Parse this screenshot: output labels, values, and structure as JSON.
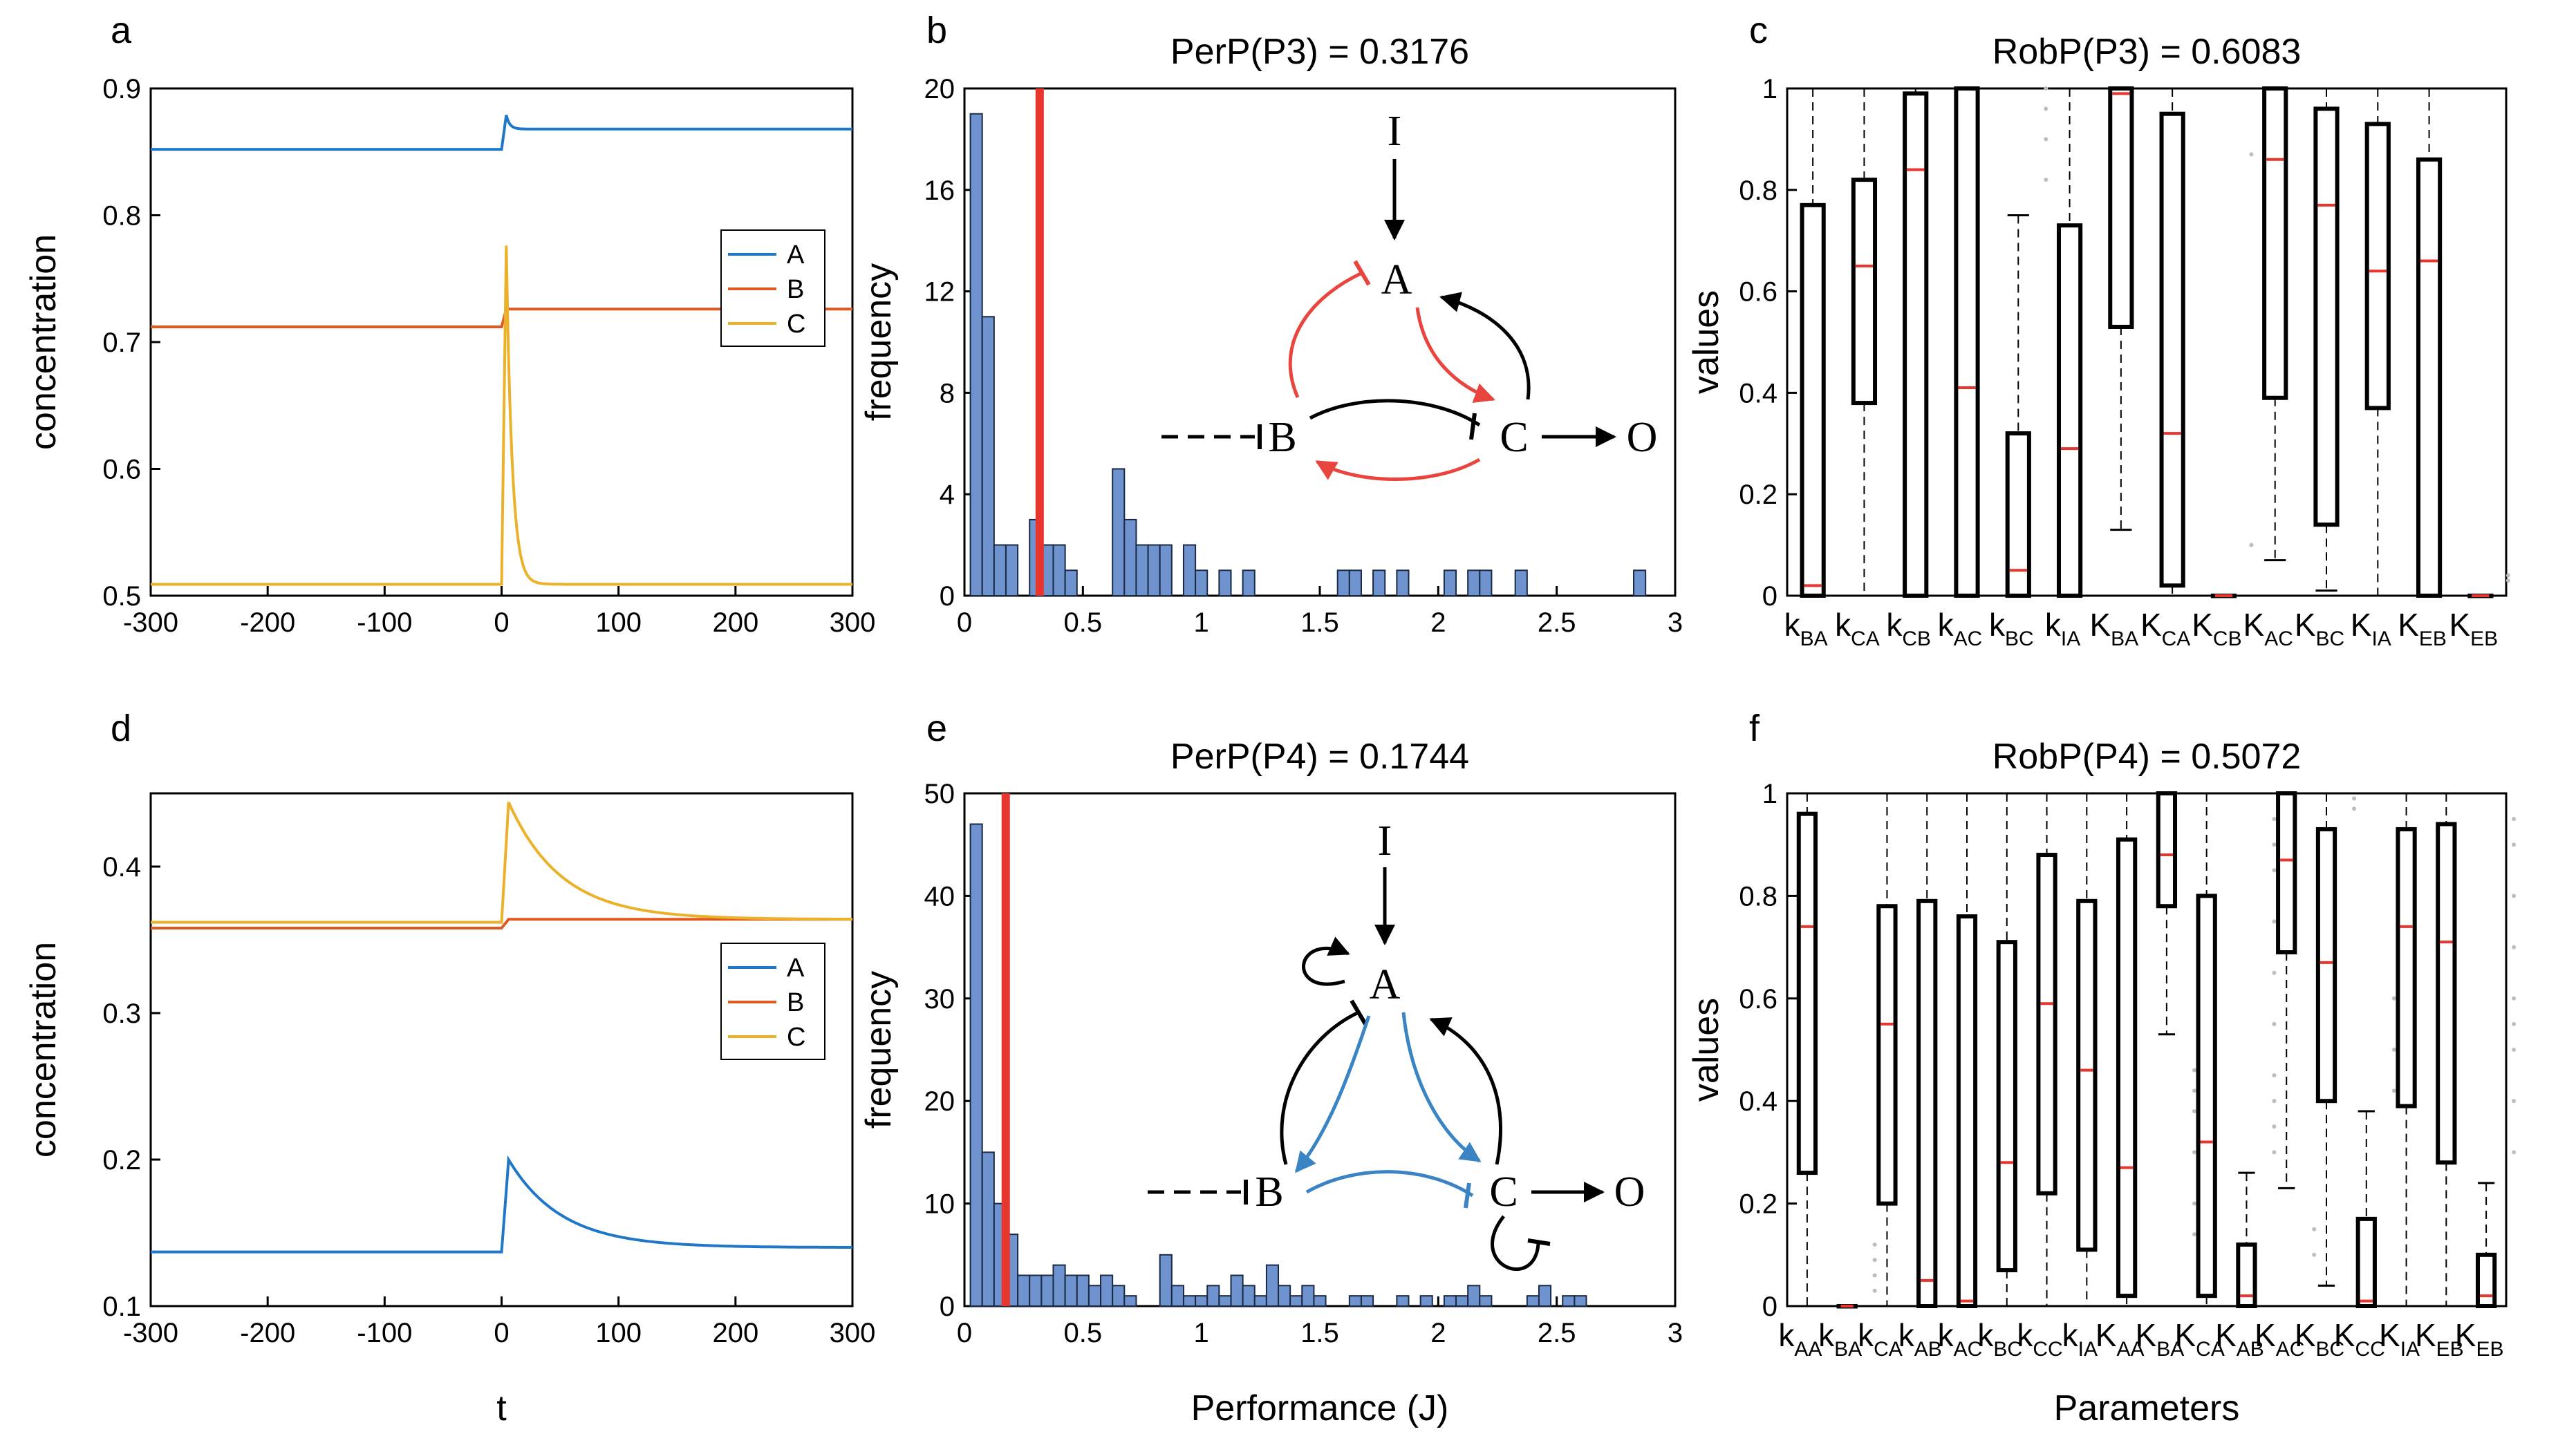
{
  "colors": {
    "A": "#1f77c8",
    "B": "#de5a21",
    "C": "#ecb12a",
    "hist_bar": "#6f93cf",
    "red_line": "#e8352e",
    "inhibit_red": "#e8453e",
    "inhibit_blue": "#3b84c4",
    "median": "#e8352e",
    "outlier": "#bdbdbd"
  },
  "panel_letters": {
    "a": "a",
    "b": "b",
    "c": "c",
    "d": "d",
    "e": "e",
    "f": "f"
  },
  "shared_labels": {
    "concentration": "concentration",
    "frequency": "frequency",
    "values": "values",
    "t": "t",
    "performance": "Performance (J)",
    "parameters": "Parameters"
  },
  "network_labels": {
    "I": "I",
    "A": "A",
    "B": "B",
    "C": "C",
    "O": "O"
  },
  "chart_data": [
    {
      "id": "a",
      "type": "line",
      "xlabel": "",
      "ylabel": "concentration",
      "xlim": [
        -300,
        300
      ],
      "ylim": [
        0.5,
        0.9
      ],
      "xticks": [
        -300,
        -200,
        -100,
        0,
        100,
        200,
        300
      ],
      "yticks": [
        0.5,
        0.6,
        0.7,
        0.8,
        0.9
      ],
      "legend": [
        "A",
        "B",
        "C"
      ],
      "legend_position": "right-middle",
      "series": [
        {
          "name": "A",
          "pre": 0.852,
          "peak": 0.879,
          "post": 0.868,
          "tau": 3
        },
        {
          "name": "B",
          "pre": 0.712,
          "peak": 0.726,
          "post": 0.726,
          "tau": 2
        },
        {
          "name": "C",
          "pre": 0.509,
          "peak": 0.776,
          "post": 0.509,
          "tau": 5
        }
      ]
    },
    {
      "id": "b",
      "type": "bar",
      "title": "PerP(P3) = 0.3176",
      "xlabel": "",
      "ylabel": "frequency",
      "xlim": [
        0,
        3
      ],
      "ylim": [
        0,
        20
      ],
      "xticks": [
        0,
        0.5,
        1,
        1.5,
        2,
        2.5,
        3
      ],
      "yticks": [
        0,
        4,
        8,
        12,
        16,
        20
      ],
      "bin_width": 0.05,
      "bins": [
        [
          0.05,
          19
        ],
        [
          0.1,
          11
        ],
        [
          0.15,
          2
        ],
        [
          0.2,
          2
        ],
        [
          0.3,
          3
        ],
        [
          0.35,
          2
        ],
        [
          0.4,
          2
        ],
        [
          0.45,
          1
        ],
        [
          0.65,
          5
        ],
        [
          0.7,
          3
        ],
        [
          0.75,
          2
        ],
        [
          0.8,
          2
        ],
        [
          0.85,
          2
        ],
        [
          0.95,
          2
        ],
        [
          1.0,
          1
        ],
        [
          1.1,
          1
        ],
        [
          1.2,
          1
        ],
        [
          1.6,
          1
        ],
        [
          1.65,
          1
        ],
        [
          1.75,
          1
        ],
        [
          1.85,
          1
        ],
        [
          2.05,
          1
        ],
        [
          2.15,
          1
        ],
        [
          2.2,
          1
        ],
        [
          2.35,
          1
        ],
        [
          2.85,
          1
        ]
      ],
      "marker": 0.3176
    },
    {
      "id": "c",
      "type": "box",
      "title": "RobP(P3) = 0.6083",
      "ylabel": "values",
      "ylim": [
        0,
        1
      ],
      "yticks": [
        0,
        0.2,
        0.4,
        0.6,
        0.8,
        1
      ],
      "labels": [
        {
          "base": "k",
          "sub": "BA"
        },
        {
          "base": "k",
          "sub": "CA"
        },
        {
          "base": "k",
          "sub": "CB"
        },
        {
          "base": "k",
          "sub": "AC"
        },
        {
          "base": "k",
          "sub": "BC"
        },
        {
          "base": "k",
          "sub": "IA"
        },
        {
          "base": "K",
          "sub": "BA"
        },
        {
          "base": "K",
          "sub": "CA"
        },
        {
          "base": "K",
          "sub": "CB"
        },
        {
          "base": "K",
          "sub": "AC"
        },
        {
          "base": "K",
          "sub": "BC"
        },
        {
          "base": "K",
          "sub": "IA"
        },
        {
          "base": "K",
          "sub": "EB"
        },
        {
          "base": "K",
          "sub": "EB"
        }
      ],
      "boxes": [
        {
          "min": 0,
          "q1": 0,
          "median": 0.02,
          "q3": 0.77,
          "max": 1
        },
        {
          "min": 0,
          "q1": 0.38,
          "median": 0.65,
          "q3": 0.82,
          "max": 1
        },
        {
          "min": 0,
          "q1": 0,
          "median": 0.84,
          "q3": 0.99,
          "max": 1
        },
        {
          "min": 0,
          "q1": 0,
          "median": 0.41,
          "q3": 1,
          "max": 1
        },
        {
          "min": 0,
          "q1": 0,
          "median": 0.05,
          "q3": 0.32,
          "max": 0.75,
          "outliers": [
            0.82,
            0.9,
            0.96,
            1
          ]
        },
        {
          "min": 0,
          "q1": 0,
          "median": 0.29,
          "q3": 0.73,
          "max": 1
        },
        {
          "min": 0.13,
          "q1": 0.53,
          "median": 0.99,
          "q3": 1,
          "max": 1
        },
        {
          "min": 0,
          "q1": 0.02,
          "median": 0.32,
          "q3": 0.95,
          "max": 1
        },
        {
          "min": 0,
          "q1": 0,
          "median": 0,
          "q3": 0,
          "max": 0,
          "outliers": [
            0.1,
            0.87
          ]
        },
        {
          "min": 0.07,
          "q1": 0.39,
          "median": 0.86,
          "q3": 1,
          "max": 1
        },
        {
          "min": 0.01,
          "q1": 0.14,
          "median": 0.77,
          "q3": 0.96,
          "max": 1
        },
        {
          "min": 0,
          "q1": 0.37,
          "median": 0.64,
          "q3": 0.93,
          "max": 1
        },
        {
          "min": 0,
          "q1": 0,
          "median": 0.66,
          "q3": 0.86,
          "max": 1
        },
        {
          "min": 0,
          "q1": 0,
          "median": 0,
          "q3": 0,
          "max": 0,
          "outliers": [
            0.03,
            0.04
          ]
        }
      ]
    },
    {
      "id": "d",
      "type": "line",
      "xlabel": "t",
      "ylabel": "concentration",
      "xlim": [
        -300,
        300
      ],
      "ylim": [
        0.1,
        0.45
      ],
      "xticks": [
        -300,
        -200,
        -100,
        0,
        100,
        200,
        300
      ],
      "yticks": [
        0.1,
        0.2,
        0.3,
        0.4
      ],
      "legend": [
        "A",
        "B",
        "C"
      ],
      "legend_position": "right-middle",
      "series": [
        {
          "name": "A",
          "pre": 0.137,
          "peak": 0.2,
          "post": 0.14,
          "tau": 45
        },
        {
          "name": "B",
          "pre": 0.358,
          "peak": 0.364,
          "post": 0.364,
          "tau": 60
        },
        {
          "name": "C",
          "pre": 0.362,
          "peak": 0.444,
          "post": 0.364,
          "tau": 45
        }
      ]
    },
    {
      "id": "e",
      "type": "bar",
      "title": "PerP(P4) = 0.1744",
      "xlabel": "Performance (J)",
      "ylabel": "frequency",
      "xlim": [
        0,
        3
      ],
      "ylim": [
        0,
        50
      ],
      "xticks": [
        0,
        0.5,
        1,
        1.5,
        2,
        2.5,
        3
      ],
      "yticks": [
        0,
        10,
        20,
        30,
        40,
        50
      ],
      "bin_width": 0.05,
      "bins": [
        [
          0.05,
          47
        ],
        [
          0.1,
          15
        ],
        [
          0.15,
          10
        ],
        [
          0.2,
          7
        ],
        [
          0.25,
          3
        ],
        [
          0.3,
          3
        ],
        [
          0.35,
          3
        ],
        [
          0.4,
          4
        ],
        [
          0.45,
          3
        ],
        [
          0.5,
          3
        ],
        [
          0.55,
          2
        ],
        [
          0.6,
          3
        ],
        [
          0.65,
          2
        ],
        [
          0.7,
          1
        ],
        [
          0.85,
          5
        ],
        [
          0.9,
          2
        ],
        [
          0.95,
          1
        ],
        [
          1.0,
          1
        ],
        [
          1.05,
          2
        ],
        [
          1.1,
          1
        ],
        [
          1.15,
          3
        ],
        [
          1.2,
          2
        ],
        [
          1.25,
          1
        ],
        [
          1.3,
          4
        ],
        [
          1.35,
          2
        ],
        [
          1.4,
          1
        ],
        [
          1.45,
          2
        ],
        [
          1.5,
          1
        ],
        [
          1.65,
          1
        ],
        [
          1.7,
          1
        ],
        [
          1.85,
          1
        ],
        [
          1.95,
          1
        ],
        [
          2.05,
          1
        ],
        [
          2.1,
          1
        ],
        [
          2.15,
          2
        ],
        [
          2.2,
          1
        ],
        [
          2.4,
          1
        ],
        [
          2.45,
          2
        ],
        [
          2.55,
          1
        ],
        [
          2.6,
          1
        ]
      ],
      "marker": 0.1744
    },
    {
      "id": "f",
      "type": "box",
      "title": "RobP(P4) = 0.5072",
      "xlabel": "Parameters",
      "ylabel": "values",
      "ylim": [
        0,
        1
      ],
      "yticks": [
        0,
        0.2,
        0.4,
        0.6,
        0.8,
        1
      ],
      "labels": [
        {
          "base": "k",
          "sub": "AA"
        },
        {
          "base": "k",
          "sub": "BA"
        },
        {
          "base": "k",
          "sub": "CA"
        },
        {
          "base": "k",
          "sub": "AB"
        },
        {
          "base": "k",
          "sub": "AC"
        },
        {
          "base": "k",
          "sub": "BC"
        },
        {
          "base": "k",
          "sub": "CC"
        },
        {
          "base": "k",
          "sub": "IA"
        },
        {
          "base": "K",
          "sub": "AA"
        },
        {
          "base": "K",
          "sub": "BA"
        },
        {
          "base": "K",
          "sub": "CA"
        },
        {
          "base": "K",
          "sub": "AB"
        },
        {
          "base": "K",
          "sub": "AC"
        },
        {
          "base": "K",
          "sub": "BC"
        },
        {
          "base": "K",
          "sub": "CC"
        },
        {
          "base": "K",
          "sub": "IA"
        },
        {
          "base": "K",
          "sub": "EB"
        },
        {
          "base": "K",
          "sub": "EB"
        }
      ],
      "boxes": [
        {
          "min": 0,
          "q1": 0.26,
          "median": 0.74,
          "q3": 0.96,
          "max": 1
        },
        {
          "min": 0,
          "q1": 0,
          "median": 0,
          "q3": 0,
          "max": 0,
          "outliers": [
            0.03,
            0.06,
            0.09,
            0.12
          ]
        },
        {
          "min": 0,
          "q1": 0.2,
          "median": 0.55,
          "q3": 0.78,
          "max": 1
        },
        {
          "min": 0,
          "q1": 0,
          "median": 0.05,
          "q3": 0.79,
          "max": 1
        },
        {
          "min": 0,
          "q1": 0,
          "median": 0.01,
          "q3": 0.76,
          "max": 1
        },
        {
          "min": 0,
          "q1": 0.07,
          "median": 0.28,
          "q3": 0.71,
          "max": 1
        },
        {
          "min": 0,
          "q1": 0.22,
          "median": 0.59,
          "q3": 0.88,
          "max": 1
        },
        {
          "min": 0,
          "q1": 0.11,
          "median": 0.46,
          "q3": 0.79,
          "max": 1
        },
        {
          "min": 0,
          "q1": 0.02,
          "median": 0.27,
          "q3": 0.91,
          "max": 1
        },
        {
          "min": 0.53,
          "q1": 0.78,
          "median": 0.88,
          "q3": 1,
          "max": 1,
          "outliers": [
            0.14,
            0.2,
            0.3,
            0.38,
            0.42,
            0.46
          ]
        },
        {
          "min": 0,
          "q1": 0.02,
          "median": 0.32,
          "q3": 0.8,
          "max": 1
        },
        {
          "min": 0,
          "q1": 0,
          "median": 0.02,
          "q3": 0.12,
          "max": 0.26,
          "outliers": [
            0.3,
            0.35,
            0.4,
            0.45,
            0.55,
            0.65,
            0.75,
            0.85,
            0.9,
            0.95
          ]
        },
        {
          "min": 0.23,
          "q1": 0.69,
          "median": 0.87,
          "q3": 1,
          "max": 1,
          "outliers": [
            0.1,
            0.15
          ]
        },
        {
          "min": 0.04,
          "q1": 0.4,
          "median": 0.67,
          "q3": 0.93,
          "max": 1,
          "outliers": [
            0.99,
            0.97
          ]
        },
        {
          "min": 0,
          "q1": 0,
          "median": 0.01,
          "q3": 0.17,
          "max": 0.38,
          "outliers": [
            0.42,
            0.5,
            0.6
          ]
        },
        {
          "min": 0,
          "q1": 0.39,
          "median": 0.74,
          "q3": 0.93,
          "max": 1
        },
        {
          "min": 0,
          "q1": 0.28,
          "median": 0.71,
          "q3": 0.94,
          "max": 1
        },
        {
          "min": 0,
          "q1": 0,
          "median": 0.02,
          "q3": 0.1,
          "max": 0.24,
          "outliers": [
            0.3,
            0.4,
            0.5,
            0.55,
            0.6,
            0.7,
            0.8,
            0.9,
            0.95
          ]
        }
      ]
    }
  ]
}
